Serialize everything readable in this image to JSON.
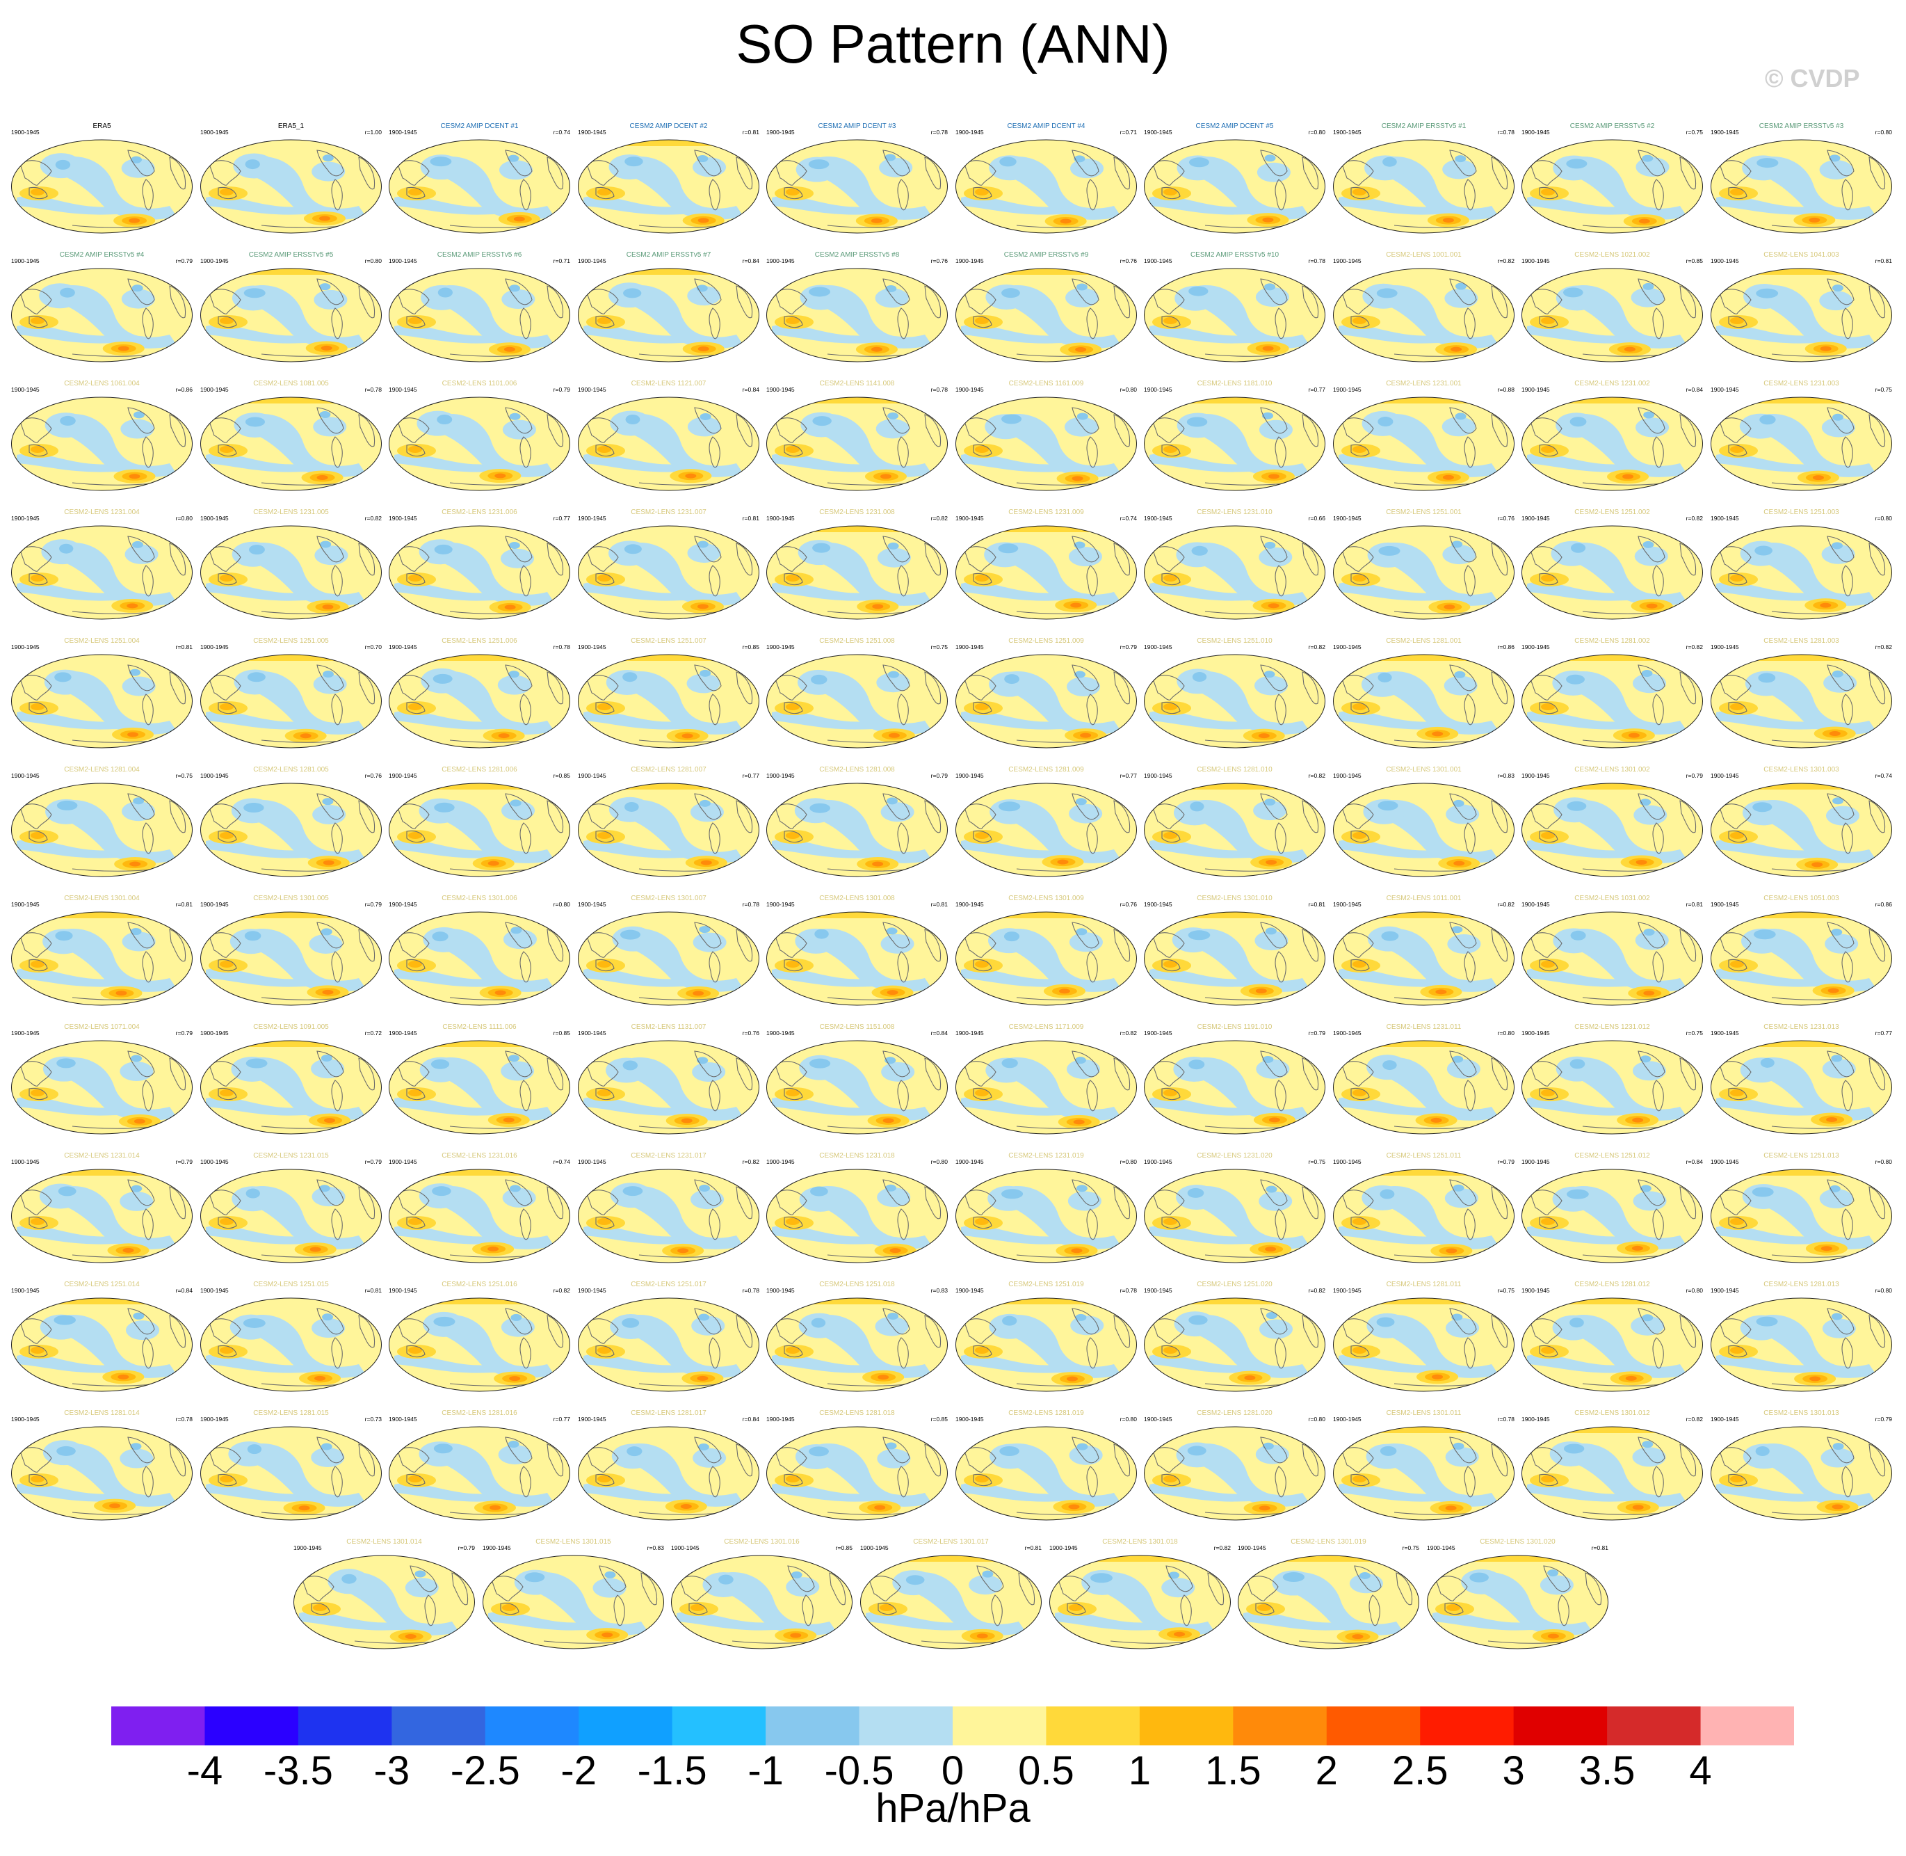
{
  "chart_data": {
    "type": "heatmap",
    "title": "SO Pattern (ANN)",
    "credit": "© CVDP",
    "units": "hPa/hPa",
    "colorbar": {
      "ticks": [
        "-4",
        "-3.5",
        "-3",
        "-2.5",
        "-2",
        "-1.5",
        "-1",
        "-0.5",
        "0",
        "0.5",
        "1",
        "1.5",
        "2",
        "2.5",
        "3",
        "3.5",
        "4"
      ],
      "colors": [
        "#7f1ff0",
        "#2b00ff",
        "#1e33f0",
        "#3366e0",
        "#1e88ff",
        "#10a0ff",
        "#24c0ff",
        "#87c8ee",
        "#b4def2",
        "#fff59a",
        "#ffd93a",
        "#ffb80e",
        "#ff8a0a",
        "#ff5a00",
        "#ff1c00",
        "#e00000",
        "#d52a2a",
        "#ffb3b3"
      ]
    },
    "panels": [
      {
        "period": "1900-1945",
        "name": "ERA5",
        "r": "",
        "label_color": "#000000"
      },
      {
        "period": "1900-1945",
        "name": "ERA5_1",
        "r": "r=1.00",
        "label_color": "#000000"
      },
      {
        "period": "1900-1945",
        "name": "CESM2 AMIP DCENT #1",
        "r": "r=0.74",
        "label_color": "#1f6fb4"
      },
      {
        "period": "1900-1945",
        "name": "CESM2 AMIP DCENT #2",
        "r": "r=0.81",
        "label_color": "#1f6fb4"
      },
      {
        "period": "1900-1945",
        "name": "CESM2 AMIP DCENT #3",
        "r": "r=0.78",
        "label_color": "#1f6fb4"
      },
      {
        "period": "1900-1945",
        "name": "CESM2 AMIP DCENT #4",
        "r": "r=0.71",
        "label_color": "#1f6fb4"
      },
      {
        "period": "1900-1945",
        "name": "CESM2 AMIP DCENT #5",
        "r": "r=0.80",
        "label_color": "#1f6fb4"
      },
      {
        "period": "1900-1945",
        "name": "CESM2 AMIP ERSSTv5 #1",
        "r": "r=0.78",
        "label_color": "#5a9a78"
      },
      {
        "period": "1900-1945",
        "name": "CESM2 AMIP ERSSTv5 #2",
        "r": "r=0.75",
        "label_color": "#5a9a78"
      },
      {
        "period": "1900-1945",
        "name": "CESM2 AMIP ERSSTv5 #3",
        "r": "r=0.80",
        "label_color": "#5a9a78"
      },
      {
        "period": "1900-1945",
        "name": "CESM2 AMIP ERSSTv5 #4",
        "r": "r=0.79",
        "label_color": "#5a9a78"
      },
      {
        "period": "1900-1945",
        "name": "CESM2 AMIP ERSSTv5 #5",
        "r": "r=0.80",
        "label_color": "#5a9a78"
      },
      {
        "period": "1900-1945",
        "name": "CESM2 AMIP ERSSTv5 #6",
        "r": "r=0.71",
        "label_color": "#5a9a78"
      },
      {
        "period": "1900-1945",
        "name": "CESM2 AMIP ERSSTv5 #7",
        "r": "r=0.84",
        "label_color": "#5a9a78"
      },
      {
        "period": "1900-1945",
        "name": "CESM2 AMIP ERSSTv5 #8",
        "r": "r=0.76",
        "label_color": "#5a9a78"
      },
      {
        "period": "1900-1945",
        "name": "CESM2 AMIP ERSSTv5 #9",
        "r": "r=0.76",
        "label_color": "#5a9a78"
      },
      {
        "period": "1900-1945",
        "name": "CESM2 AMIP ERSSTv5 #10",
        "r": "r=0.78",
        "label_color": "#5a9a78"
      },
      {
        "period": "1900-1945",
        "name": "CESM2-LENS 1001.001",
        "r": "r=0.82",
        "label_color": "#d6c87a"
      },
      {
        "period": "1900-1945",
        "name": "CESM2-LENS 1021.002",
        "r": "r=0.85",
        "label_color": "#d6c87a"
      },
      {
        "period": "1900-1945",
        "name": "CESM2-LENS 1041.003",
        "r": "r=0.81",
        "label_color": "#d6c87a"
      },
      {
        "period": "1900-1945",
        "name": "CESM2-LENS 1061.004",
        "r": "r=0.86",
        "label_color": "#d6c87a"
      },
      {
        "period": "1900-1945",
        "name": "CESM2-LENS 1081.005",
        "r": "r=0.78",
        "label_color": "#d6c87a"
      },
      {
        "period": "1900-1945",
        "name": "CESM2-LENS 1101.006",
        "r": "r=0.79",
        "label_color": "#d6c87a"
      },
      {
        "period": "1900-1945",
        "name": "CESM2-LENS 1121.007",
        "r": "r=0.84",
        "label_color": "#d6c87a"
      },
      {
        "period": "1900-1945",
        "name": "CESM2-LENS 1141.008",
        "r": "r=0.78",
        "label_color": "#d6c87a"
      },
      {
        "period": "1900-1945",
        "name": "CESM2-LENS 1161.009",
        "r": "r=0.80",
        "label_color": "#d6c87a"
      },
      {
        "period": "1900-1945",
        "name": "CESM2-LENS 1181.010",
        "r": "r=0.77",
        "label_color": "#d6c87a"
      },
      {
        "period": "1900-1945",
        "name": "CESM2-LENS 1231.001",
        "r": "r=0.88",
        "label_color": "#d6c87a"
      },
      {
        "period": "1900-1945",
        "name": "CESM2-LENS 1231.002",
        "r": "r=0.84",
        "label_color": "#d6c87a"
      },
      {
        "period": "1900-1945",
        "name": "CESM2-LENS 1231.003",
        "r": "r=0.75",
        "label_color": "#d6c87a"
      },
      {
        "period": "1900-1945",
        "name": "CESM2-LENS 1231.004",
        "r": "r=0.80",
        "label_color": "#d6c87a"
      },
      {
        "period": "1900-1945",
        "name": "CESM2-LENS 1231.005",
        "r": "r=0.82",
        "label_color": "#d6c87a"
      },
      {
        "period": "1900-1945",
        "name": "CESM2-LENS 1231.006",
        "r": "r=0.77",
        "label_color": "#d6c87a"
      },
      {
        "period": "1900-1945",
        "name": "CESM2-LENS 1231.007",
        "r": "r=0.81",
        "label_color": "#d6c87a"
      },
      {
        "period": "1900-1945",
        "name": "CESM2-LENS 1231.008",
        "r": "r=0.82",
        "label_color": "#d6c87a"
      },
      {
        "period": "1900-1945",
        "name": "CESM2-LENS 1231.009",
        "r": "r=0.74",
        "label_color": "#d6c87a"
      },
      {
        "period": "1900-1945",
        "name": "CESM2-LENS 1231.010",
        "r": "r=0.66",
        "label_color": "#d6c87a"
      },
      {
        "period": "1900-1945",
        "name": "CESM2-LENS 1251.001",
        "r": "r=0.76",
        "label_color": "#d6c87a"
      },
      {
        "period": "1900-1945",
        "name": "CESM2-LENS 1251.002",
        "r": "r=0.82",
        "label_color": "#d6c87a"
      },
      {
        "period": "1900-1945",
        "name": "CESM2-LENS 1251.003",
        "r": "r=0.80",
        "label_color": "#d6c87a"
      },
      {
        "period": "1900-1945",
        "name": "CESM2-LENS 1251.004",
        "r": "r=0.81",
        "label_color": "#d6c87a"
      },
      {
        "period": "1900-1945",
        "name": "CESM2-LENS 1251.005",
        "r": "r=0.70",
        "label_color": "#d6c87a"
      },
      {
        "period": "1900-1945",
        "name": "CESM2-LENS 1251.006",
        "r": "r=0.78",
        "label_color": "#d6c87a"
      },
      {
        "period": "1900-1945",
        "name": "CESM2-LENS 1251.007",
        "r": "r=0.85",
        "label_color": "#d6c87a"
      },
      {
        "period": "1900-1945",
        "name": "CESM2-LENS 1251.008",
        "r": "r=0.75",
        "label_color": "#d6c87a"
      },
      {
        "period": "1900-1945",
        "name": "CESM2-LENS 1251.009",
        "r": "r=0.79",
        "label_color": "#d6c87a"
      },
      {
        "period": "1900-1945",
        "name": "CESM2-LENS 1251.010",
        "r": "r=0.82",
        "label_color": "#d6c87a"
      },
      {
        "period": "1900-1945",
        "name": "CESM2-LENS 1281.001",
        "r": "r=0.86",
        "label_color": "#d6c87a"
      },
      {
        "period": "1900-1945",
        "name": "CESM2-LENS 1281.002",
        "r": "r=0.82",
        "label_color": "#d6c87a"
      },
      {
        "period": "1900-1945",
        "name": "CESM2-LENS 1281.003",
        "r": "r=0.82",
        "label_color": "#d6c87a"
      },
      {
        "period": "1900-1945",
        "name": "CESM2-LENS 1281.004",
        "r": "r=0.75",
        "label_color": "#d6c87a"
      },
      {
        "period": "1900-1945",
        "name": "CESM2-LENS 1281.005",
        "r": "r=0.76",
        "label_color": "#d6c87a"
      },
      {
        "period": "1900-1945",
        "name": "CESM2-LENS 1281.006",
        "r": "r=0.85",
        "label_color": "#d6c87a"
      },
      {
        "period": "1900-1945",
        "name": "CESM2-LENS 1281.007",
        "r": "r=0.77",
        "label_color": "#d6c87a"
      },
      {
        "period": "1900-1945",
        "name": "CESM2-LENS 1281.008",
        "r": "r=0.79",
        "label_color": "#d6c87a"
      },
      {
        "period": "1900-1945",
        "name": "CESM2-LENS 1281.009",
        "r": "r=0.77",
        "label_color": "#d6c87a"
      },
      {
        "period": "1900-1945",
        "name": "CESM2-LENS 1281.010",
        "r": "r=0.82",
        "label_color": "#d6c87a"
      },
      {
        "period": "1900-1945",
        "name": "CESM2-LENS 1301.001",
        "r": "r=0.83",
        "label_color": "#d6c87a"
      },
      {
        "period": "1900-1945",
        "name": "CESM2-LENS 1301.002",
        "r": "r=0.79",
        "label_color": "#d6c87a"
      },
      {
        "period": "1900-1945",
        "name": "CESM2-LENS 1301.003",
        "r": "r=0.74",
        "label_color": "#d6c87a"
      },
      {
        "period": "1900-1945",
        "name": "CESM2-LENS 1301.004",
        "r": "r=0.81",
        "label_color": "#d6c87a"
      },
      {
        "period": "1900-1945",
        "name": "CESM2-LENS 1301.005",
        "r": "r=0.79",
        "label_color": "#d6c87a"
      },
      {
        "period": "1900-1945",
        "name": "CESM2-LENS 1301.006",
        "r": "r=0.80",
        "label_color": "#d6c87a"
      },
      {
        "period": "1900-1945",
        "name": "CESM2-LENS 1301.007",
        "r": "r=0.78",
        "label_color": "#d6c87a"
      },
      {
        "period": "1900-1945",
        "name": "CESM2-LENS 1301.008",
        "r": "r=0.81",
        "label_color": "#d6c87a"
      },
      {
        "period": "1900-1945",
        "name": "CESM2-LENS 1301.009",
        "r": "r=0.76",
        "label_color": "#d6c87a"
      },
      {
        "period": "1900-1945",
        "name": "CESM2-LENS 1301.010",
        "r": "r=0.81",
        "label_color": "#d6c87a"
      },
      {
        "period": "1900-1945",
        "name": "CESM2-LENS 1011.001",
        "r": "r=0.82",
        "label_color": "#d6c87a"
      },
      {
        "period": "1900-1945",
        "name": "CESM2-LENS 1031.002",
        "r": "r=0.81",
        "label_color": "#d6c87a"
      },
      {
        "period": "1900-1945",
        "name": "CESM2-LENS 1051.003",
        "r": "r=0.86",
        "label_color": "#d6c87a"
      },
      {
        "period": "1900-1945",
        "name": "CESM2-LENS 1071.004",
        "r": "r=0.79",
        "label_color": "#d6c87a"
      },
      {
        "period": "1900-1945",
        "name": "CESM2-LENS 1091.005",
        "r": "r=0.72",
        "label_color": "#d6c87a"
      },
      {
        "period": "1900-1945",
        "name": "CESM2-LENS 1111.006",
        "r": "r=0.85",
        "label_color": "#d6c87a"
      },
      {
        "period": "1900-1945",
        "name": "CESM2-LENS 1131.007",
        "r": "r=0.76",
        "label_color": "#d6c87a"
      },
      {
        "period": "1900-1945",
        "name": "CESM2-LENS 1151.008",
        "r": "r=0.84",
        "label_color": "#d6c87a"
      },
      {
        "period": "1900-1945",
        "name": "CESM2-LENS 1171.009",
        "r": "r=0.82",
        "label_color": "#d6c87a"
      },
      {
        "period": "1900-1945",
        "name": "CESM2-LENS 1191.010",
        "r": "r=0.79",
        "label_color": "#d6c87a"
      },
      {
        "period": "1900-1945",
        "name": "CESM2-LENS 1231.011",
        "r": "r=0.80",
        "label_color": "#d6c87a"
      },
      {
        "period": "1900-1945",
        "name": "CESM2-LENS 1231.012",
        "r": "r=0.75",
        "label_color": "#d6c87a"
      },
      {
        "period": "1900-1945",
        "name": "CESM2-LENS 1231.013",
        "r": "r=0.77",
        "label_color": "#d6c87a"
      },
      {
        "period": "1900-1945",
        "name": "CESM2-LENS 1231.014",
        "r": "r=0.79",
        "label_color": "#d6c87a"
      },
      {
        "period": "1900-1945",
        "name": "CESM2-LENS 1231.015",
        "r": "r=0.79",
        "label_color": "#d6c87a"
      },
      {
        "period": "1900-1945",
        "name": "CESM2-LENS 1231.016",
        "r": "r=0.74",
        "label_color": "#d6c87a"
      },
      {
        "period": "1900-1945",
        "name": "CESM2-LENS 1231.017",
        "r": "r=0.82",
        "label_color": "#d6c87a"
      },
      {
        "period": "1900-1945",
        "name": "CESM2-LENS 1231.018",
        "r": "r=0.80",
        "label_color": "#d6c87a"
      },
      {
        "period": "1900-1945",
        "name": "CESM2-LENS 1231.019",
        "r": "r=0.80",
        "label_color": "#d6c87a"
      },
      {
        "period": "1900-1945",
        "name": "CESM2-LENS 1231.020",
        "r": "r=0.75",
        "label_color": "#d6c87a"
      },
      {
        "period": "1900-1945",
        "name": "CESM2-LENS 1251.011",
        "r": "r=0.79",
        "label_color": "#d6c87a"
      },
      {
        "period": "1900-1945",
        "name": "CESM2-LENS 1251.012",
        "r": "r=0.84",
        "label_color": "#d6c87a"
      },
      {
        "period": "1900-1945",
        "name": "CESM2-LENS 1251.013",
        "r": "r=0.80",
        "label_color": "#d6c87a"
      },
      {
        "period": "1900-1945",
        "name": "CESM2-LENS 1251.014",
        "r": "r=0.84",
        "label_color": "#d6c87a"
      },
      {
        "period": "1900-1945",
        "name": "CESM2-LENS 1251.015",
        "r": "r=0.81",
        "label_color": "#d6c87a"
      },
      {
        "period": "1900-1945",
        "name": "CESM2-LENS 1251.016",
        "r": "r=0.82",
        "label_color": "#d6c87a"
      },
      {
        "period": "1900-1945",
        "name": "CESM2-LENS 1251.017",
        "r": "r=0.78",
        "label_color": "#d6c87a"
      },
      {
        "period": "1900-1945",
        "name": "CESM2-LENS 1251.018",
        "r": "r=0.83",
        "label_color": "#d6c87a"
      },
      {
        "period": "1900-1945",
        "name": "CESM2-LENS 1251.019",
        "r": "r=0.78",
        "label_color": "#d6c87a"
      },
      {
        "period": "1900-1945",
        "name": "CESM2-LENS 1251.020",
        "r": "r=0.82",
        "label_color": "#d6c87a"
      },
      {
        "period": "1900-1945",
        "name": "CESM2-LENS 1281.011",
        "r": "r=0.75",
        "label_color": "#d6c87a"
      },
      {
        "period": "1900-1945",
        "name": "CESM2-LENS 1281.012",
        "r": "r=0.80",
        "label_color": "#d6c87a"
      },
      {
        "period": "1900-1945",
        "name": "CESM2-LENS 1281.013",
        "r": "r=0.80",
        "label_color": "#d6c87a"
      },
      {
        "period": "1900-1945",
        "name": "CESM2-LENS 1281.014",
        "r": "r=0.78",
        "label_color": "#d6c87a"
      },
      {
        "period": "1900-1945",
        "name": "CESM2-LENS 1281.015",
        "r": "r=0.73",
        "label_color": "#d6c87a"
      },
      {
        "period": "1900-1945",
        "name": "CESM2-LENS 1281.016",
        "r": "r=0.77",
        "label_color": "#d6c87a"
      },
      {
        "period": "1900-1945",
        "name": "CESM2-LENS 1281.017",
        "r": "r=0.84",
        "label_color": "#d6c87a"
      },
      {
        "period": "1900-1945",
        "name": "CESM2-LENS 1281.018",
        "r": "r=0.85",
        "label_color": "#d6c87a"
      },
      {
        "period": "1900-1945",
        "name": "CESM2-LENS 1281.019",
        "r": "r=0.80",
        "label_color": "#d6c87a"
      },
      {
        "period": "1900-1945",
        "name": "CESM2-LENS 1281.020",
        "r": "r=0.80",
        "label_color": "#d6c87a"
      },
      {
        "period": "1900-1945",
        "name": "CESM2-LENS 1301.011",
        "r": "r=0.78",
        "label_color": "#d6c87a"
      },
      {
        "period": "1900-1945",
        "name": "CESM2-LENS 1301.012",
        "r": "r=0.82",
        "label_color": "#d6c87a"
      },
      {
        "period": "1900-1945",
        "name": "CESM2-LENS 1301.013",
        "r": "r=0.79",
        "label_color": "#d6c87a"
      },
      {
        "period": "1900-1945",
        "name": "CESM2-LENS 1301.014",
        "r": "r=0.79",
        "label_color": "#d6c87a"
      },
      {
        "period": "1900-1945",
        "name": "CESM2-LENS 1301.015",
        "r": "r=0.83",
        "label_color": "#d6c87a"
      },
      {
        "period": "1900-1945",
        "name": "CESM2-LENS 1301.016",
        "r": "r=0.85",
        "label_color": "#d6c87a"
      },
      {
        "period": "1900-1945",
        "name": "CESM2-LENS 1301.017",
        "r": "r=0.81",
        "label_color": "#d6c87a"
      },
      {
        "period": "1900-1945",
        "name": "CESM2-LENS 1301.018",
        "r": "r=0.82",
        "label_color": "#d6c87a"
      },
      {
        "period": "1900-1945",
        "name": "CESM2-LENS 1301.019",
        "r": "r=0.75",
        "label_color": "#d6c87a"
      },
      {
        "period": "1900-1945",
        "name": "CESM2-LENS 1301.020",
        "r": "r=0.81",
        "label_color": "#d6c87a"
      }
    ]
  }
}
